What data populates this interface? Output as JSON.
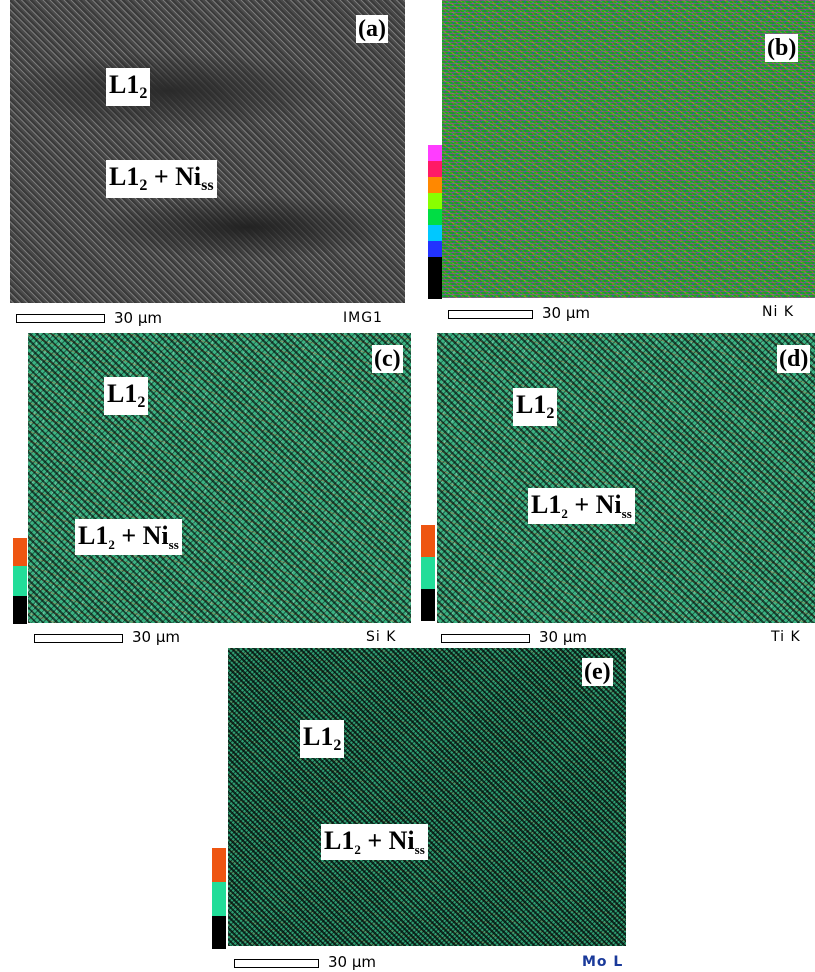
{
  "panels": {
    "a": {
      "tag": "(a)",
      "label_top": "L1",
      "label_top_sub": "2",
      "label_mid": "L1",
      "label_mid_sub": "2",
      "label_mid_rest": " + Ni",
      "label_mid_rest_sub": "ss",
      "scale": "30 µm",
      "code": "IMG1"
    },
    "b": {
      "tag": "(b)",
      "scale": "30 µm",
      "code": "Ni K",
      "color_scale": [
        "#ff3dff",
        "#ff1a66",
        "#ff8800",
        "#88ff00",
        "#00dd44",
        "#00c8ff",
        "#2233ff",
        "#000000"
      ]
    },
    "c": {
      "tag": "(c)",
      "label_top": "L1",
      "label_top_sub": "2",
      "label_mid": "L1",
      "label_mid_sub": "2",
      "label_mid_rest": " + Ni",
      "label_mid_rest_sub": "ss",
      "scale": "30 µm",
      "code": "Si K",
      "color_scale": [
        "#ee5511",
        "#22dd99",
        "#000000"
      ]
    },
    "d": {
      "tag": "(d)",
      "label_top": "L1",
      "label_top_sub": "2",
      "label_mid": "L1",
      "label_mid_sub": "2",
      "label_mid_rest": " + Ni",
      "label_mid_rest_sub": "ss",
      "scale": "30 µm",
      "code": "Ti K",
      "color_scale": [
        "#ee5511",
        "#22dd99",
        "#000000"
      ]
    },
    "e": {
      "tag": "(e)",
      "label_top": "L1",
      "label_top_sub": "2",
      "label_mid": "L1",
      "label_mid_sub": "2",
      "label_mid_rest": " + Ni",
      "label_mid_rest_sub": "ss",
      "scale": "30 µm",
      "code": "Mo L",
      "color_scale": [
        "#ee5511",
        "#22dd99",
        "#000000"
      ]
    }
  }
}
